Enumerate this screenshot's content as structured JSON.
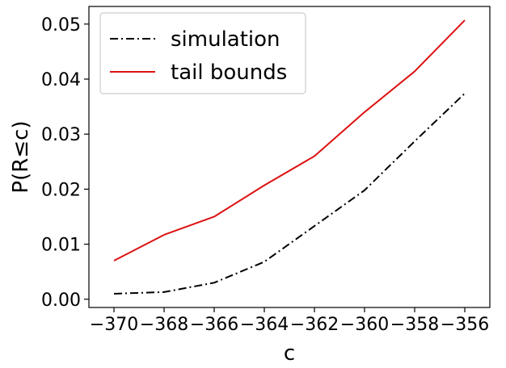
{
  "chart_data": {
    "type": "line",
    "title": "",
    "xlabel": "c",
    "ylabel": "P(R≤c)",
    "xlim": [
      -371.0,
      -355.0
    ],
    "ylim": [
      -0.0015,
      0.0532
    ],
    "x": [
      -370,
      -368,
      -366,
      -364,
      -362,
      -360,
      -358,
      -356
    ],
    "xticks": [
      -370,
      -368,
      -366,
      -364,
      -362,
      -360,
      -358,
      -356
    ],
    "xtick_labels": [
      "−370",
      "−368",
      "−366",
      "−364",
      "−362",
      "−360",
      "−358",
      "−356"
    ],
    "yticks": [
      0.0,
      0.01,
      0.02,
      0.03,
      0.04,
      0.05
    ],
    "ytick_labels": [
      "0.00",
      "0.01",
      "0.02",
      "0.03",
      "0.04",
      "0.05"
    ],
    "grid": false,
    "legend_position": "top-left",
    "series": [
      {
        "name": "simulation",
        "color": "#000000",
        "style": "dash-dot",
        "values": [
          0.001,
          0.0013,
          0.003,
          0.0068,
          0.0133,
          0.0198,
          0.0287,
          0.0374
        ]
      },
      {
        "name": "tail bounds",
        "color": "#dd1111",
        "style": "solid",
        "values": [
          0.007,
          0.0117,
          0.015,
          0.0207,
          0.026,
          0.034,
          0.0414,
          0.0507
        ]
      }
    ]
  }
}
